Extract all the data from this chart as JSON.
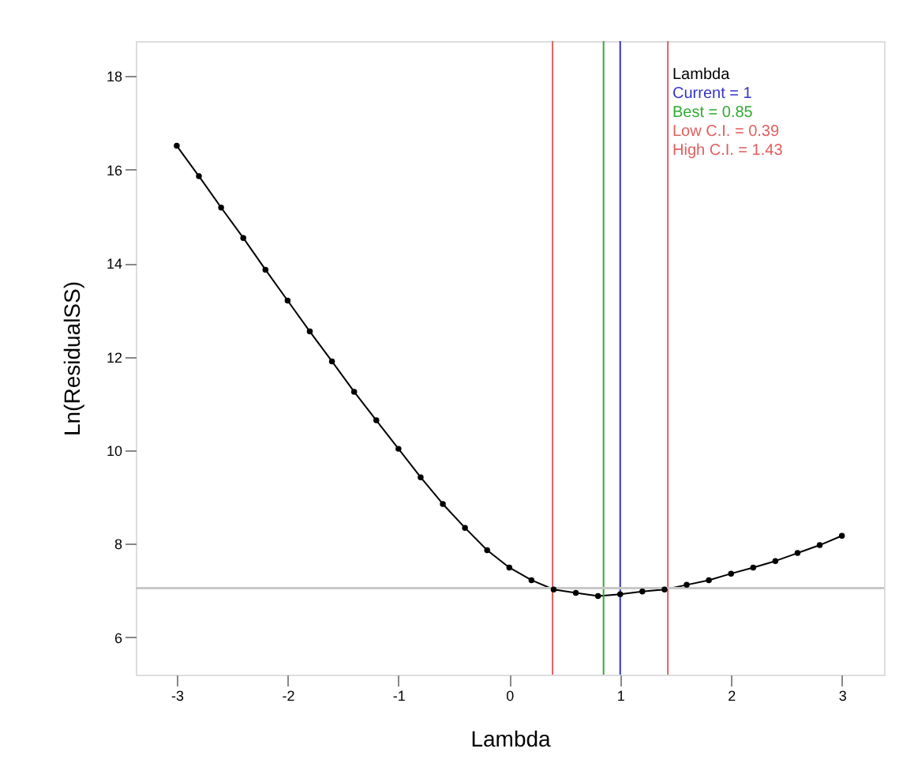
{
  "chart_data": {
    "type": "line",
    "xlabel": "Lambda",
    "ylabel": "Ln(ResidualSS)",
    "x": [
      -3,
      -2.8,
      -2.6,
      -2.4,
      -2.2,
      -2,
      -1.8,
      -1.6,
      -1.4,
      -1.2,
      -1,
      -0.8,
      -0.6,
      -0.4,
      -0.2,
      0,
      0.2,
      0.4,
      0.6,
      0.8,
      1,
      1.2,
      1.4,
      1.6,
      1.8,
      2,
      2.2,
      2.4,
      2.6,
      2.8,
      3
    ],
    "series": [
      {
        "color": "#000000",
        "values": [
          16.51,
          15.86,
          15.19,
          14.54,
          13.86,
          13.2,
          12.54,
          11.9,
          11.25,
          10.64,
          10.03,
          9.42,
          8.85,
          8.34,
          7.86,
          7.49,
          7.22,
          7.02,
          6.95,
          6.88,
          6.92,
          6.98,
          7.02,
          7.12,
          7.22,
          7.36,
          7.49,
          7.63,
          7.8,
          7.97,
          8.17
        ]
      }
    ],
    "marker": "circle",
    "line_style": "solid",
    "xlim": [
      -3.37,
      3.38
    ],
    "xticks": [
      -3,
      -2,
      -1,
      0,
      1,
      2,
      3
    ],
    "ylim": [
      5.2,
      18.75
    ],
    "yticks": [
      6,
      8,
      10,
      12,
      14,
      16,
      18
    ],
    "annotations": [
      "Lambda"
    ],
    "ref_lines": [
      {
        "axis": "x",
        "value": 1,
        "label": "Current = 1",
        "color": "#3333cc"
      },
      {
        "axis": "x",
        "value": 0.85,
        "label": "Best = 0.85",
        "color": "#33aa33"
      },
      {
        "axis": "x",
        "value": 0.39,
        "label": "Low C.I. = 0.39",
        "color": "#e06060"
      },
      {
        "axis": "x",
        "value": 1.43,
        "label": "High C.I. = 1.43",
        "color": "#e06060"
      },
      {
        "axis": "y",
        "value": 7.05,
        "color": "#c8c8c8"
      }
    ]
  }
}
